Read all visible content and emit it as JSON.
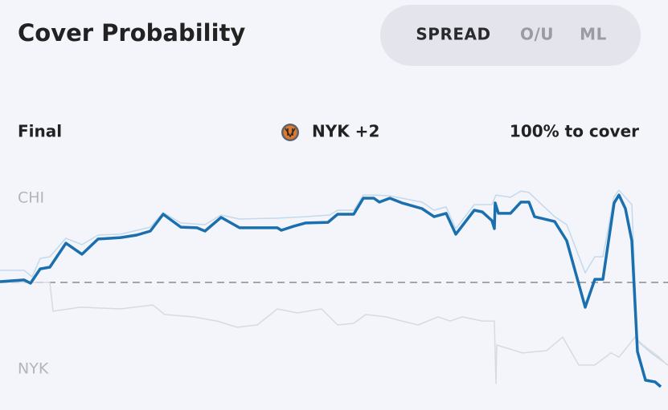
{
  "header": {
    "title": "Cover Probability",
    "tabs": [
      "SPREAD",
      "O/U",
      "ML"
    ],
    "active_tab": 0
  },
  "status": {
    "state": "Final",
    "team_line": "NYK +2",
    "result": "100% to cover"
  },
  "chart_data": {
    "type": "line",
    "xlim": [
      0,
      831
    ],
    "ylim": [
      0,
      100
    ],
    "reference": 50,
    "top_label": "CHI",
    "bottom_label": "NYK",
    "series": [
      {
        "color": "#c3d9ec",
        "width": 1.5,
        "x": [
          0,
          30,
          40,
          50,
          62,
          82,
          102,
          122,
          150,
          187,
          203,
          225,
          255,
          275,
          298,
          345,
          380,
          410,
          420,
          440,
          452,
          465,
          485,
          525,
          540,
          555,
          567,
          590,
          612,
          617,
          635,
          648,
          658,
          690,
          705,
          728,
          740,
          750,
          764,
          770,
          786,
          793,
          810,
          831
        ],
        "values": [
          55.8,
          55.8,
          52.7,
          61.5,
          62.3,
          71.2,
          68.1,
          72.7,
          73.1,
          76.5,
          83.5,
          78.5,
          77.7,
          82.3,
          80.4,
          80.8,
          81.5,
          82.3,
          84.6,
          84.6,
          91.9,
          91.9,
          91.5,
          88.5,
          84.6,
          86.2,
          75.8,
          87.3,
          87.3,
          91.9,
          90.8,
          93.8,
          93.1,
          81.5,
          77.7,
          54.6,
          62.3,
          62.3,
          91.2,
          94.2,
          87.3,
          21.9,
          16.2,
          10.4
        ]
      },
      {
        "color": "#d9dadf",
        "width": 1.5,
        "x": [
          0,
          62,
          66,
          100,
          150,
          190,
          205,
          240,
          270,
          295,
          320,
          345,
          370,
          400,
          420,
          440,
          455,
          480,
          500,
          520,
          545,
          560,
          575,
          600,
          615,
          617,
          618,
          650,
          680,
          700,
          720,
          740,
          760,
          770,
          790,
          800,
          820,
          830
        ],
        "values": [
          50,
          50,
          36.2,
          38.1,
          37.3,
          39.2,
          34.6,
          33.5,
          31.5,
          28.5,
          29.6,
          37.3,
          35.4,
          37.3,
          29.6,
          30.4,
          34.6,
          33.5,
          31.5,
          29.6,
          33.5,
          31.5,
          33.5,
          31.5,
          31.5,
          1.5,
          20,
          16.2,
          17.3,
          23.8,
          10.4,
          10.4,
          16.2,
          14.2,
          23.8,
          20,
          14.2,
          10.4
        ]
      },
      {
        "color": "#1a6fae",
        "width": 3.5,
        "x": [
          0,
          30,
          38,
          50,
          62,
          82,
          102,
          122,
          150,
          170,
          187,
          203,
          225,
          245,
          255,
          275,
          298,
          345,
          350,
          365,
          380,
          408,
          420,
          440,
          452,
          465,
          472,
          485,
          500,
          525,
          540,
          555,
          567,
          590,
          600,
          612,
          615,
          616,
          620,
          635,
          648,
          658,
          665,
          690,
          705,
          728,
          740,
          750,
          764,
          770,
          778,
          786,
          793,
          803,
          815,
          822
        ],
        "values": [
          50.4,
          51.2,
          49.6,
          56.5,
          57.3,
          68.8,
          63.5,
          70.8,
          71.5,
          72.7,
          74.6,
          82.7,
          76.5,
          76.2,
          74.6,
          81.2,
          76.2,
          76.2,
          75,
          76.9,
          78.5,
          78.8,
          82.7,
          82.7,
          90.4,
          90.4,
          88.5,
          90.4,
          88.1,
          85.4,
          81.5,
          83.1,
          73.1,
          84.6,
          83.8,
          79.6,
          75.8,
          88.1,
          83.1,
          83.1,
          88.5,
          88.5,
          81.5,
          79.2,
          70,
          38.1,
          51.5,
          51.5,
          88.1,
          91.9,
          85.4,
          70,
          16.9,
          3.1,
          2.3,
          0
        ]
      }
    ]
  }
}
